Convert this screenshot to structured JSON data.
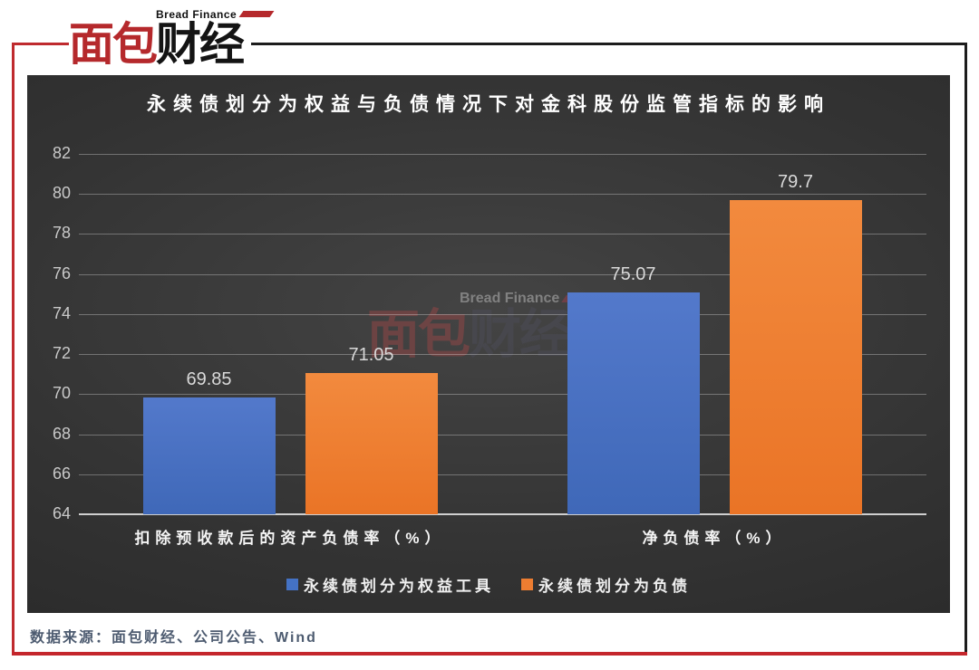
{
  "logo": {
    "tagline": "Bread Finance",
    "name_red": "面包",
    "name_black": "财经"
  },
  "watermark": {
    "tagline": "Bread Finance",
    "name_red": "面包",
    "name_black": "财经"
  },
  "chart_data": {
    "type": "bar",
    "title": "永续债划分为权益与负债情况下对金科股份监管指标的影响",
    "categories": [
      "扣除预收款后的资产负债率（%）",
      "净负债率（%）"
    ],
    "series": [
      {
        "name": "永续债划分为权益工具",
        "color": "#4472c4",
        "gradient": [
          "#5379cb",
          "#3f68b8"
        ],
        "values": [
          69.85,
          75.07
        ],
        "labels": [
          "69.85",
          "75.07"
        ]
      },
      {
        "name": "永续债划分为负债",
        "color": "#ed7d31",
        "gradient": [
          "#f28a3e",
          "#ea7426"
        ],
        "values": [
          71.05,
          79.7
        ],
        "labels": [
          "71.05",
          "79.7"
        ]
      }
    ],
    "ylim": [
      64,
      82
    ],
    "yticks": [
      64,
      66,
      68,
      70,
      72,
      74,
      76,
      78,
      80,
      82
    ],
    "grid": true,
    "legend_position": "bottom",
    "background": "dark"
  },
  "footer": {
    "source": "数据来源：面包财经、公司公告、Wind"
  }
}
